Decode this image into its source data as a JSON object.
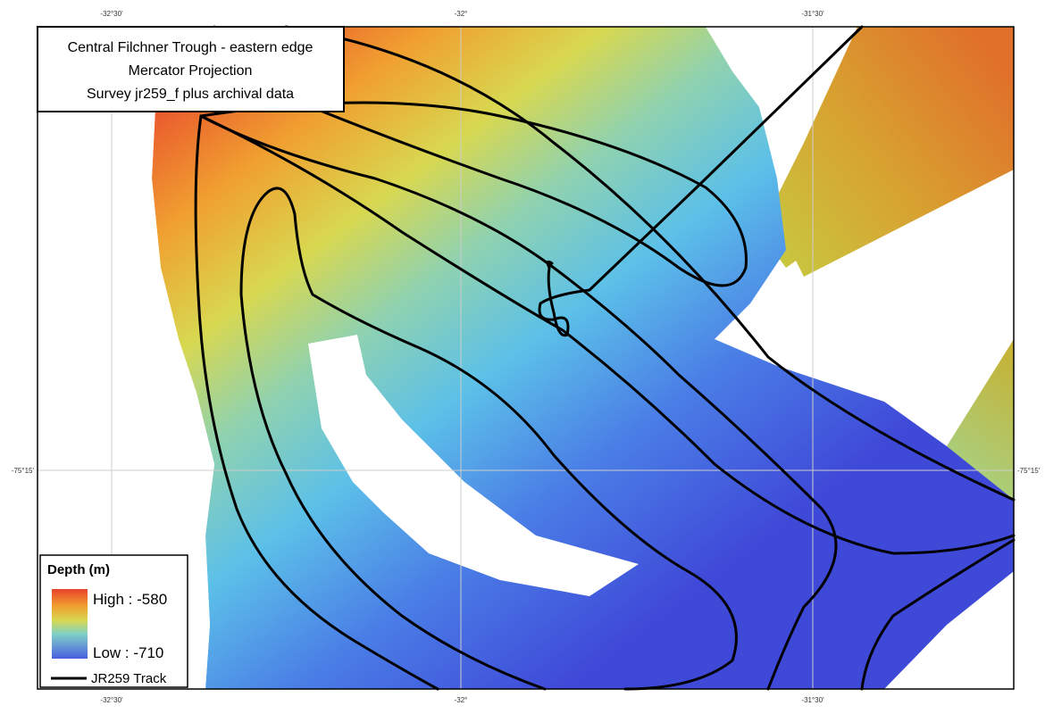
{
  "title_box": {
    "lines": [
      "Central Filchner Trough - eastern edge",
      "Mercator Projection",
      "Survey jr259_f plus archival data"
    ]
  },
  "graticule": {
    "longitude_labels": [
      "-32°30'",
      "-32°",
      "-31°30'"
    ],
    "latitude_labels": [
      "-75°15'"
    ]
  },
  "legend": {
    "title": "Depth (m)",
    "high": "High : -580",
    "low": "Low : -710",
    "track": "JR259 Track"
  }
}
